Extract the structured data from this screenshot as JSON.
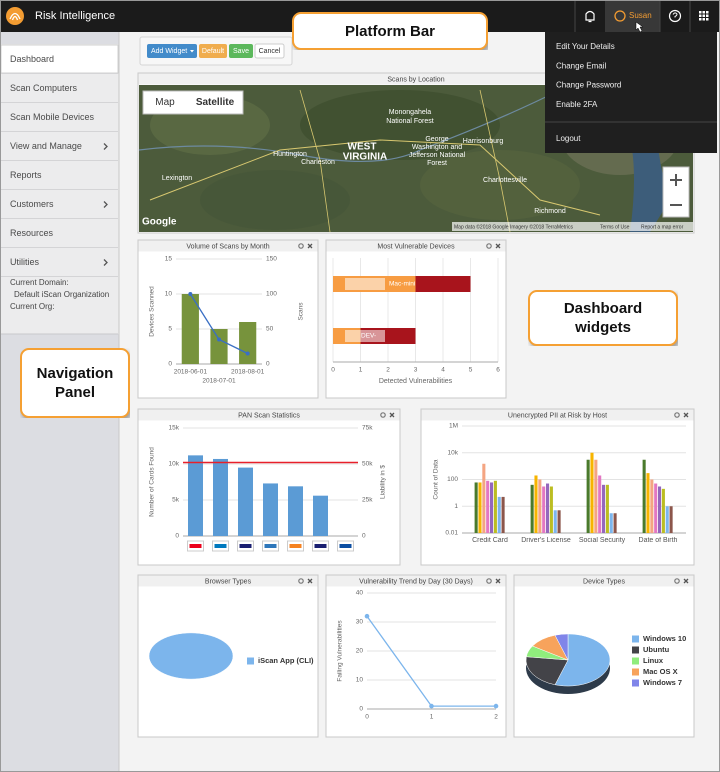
{
  "header": {
    "title": "Risk Intelligence",
    "user": "Susan"
  },
  "user_menu": {
    "items": [
      "Edit Your Details",
      "Change Email",
      "Change Password",
      "Enable 2FA"
    ],
    "logout": "Logout"
  },
  "nav": {
    "items": [
      {
        "label": "Dashboard",
        "active": true
      },
      {
        "label": "Scan Computers"
      },
      {
        "label": "Scan Mobile Devices"
      },
      {
        "label": "View and Manage",
        "has_submenu": true
      },
      {
        "label": "Reports"
      },
      {
        "label": "Customers",
        "has_submenu": true
      },
      {
        "label": "Resources"
      },
      {
        "label": "Utilities",
        "has_submenu": true
      }
    ],
    "domain_info": [
      "Current Domain:",
      "Default iScan Organization",
      "Current Org:"
    ]
  },
  "toolbar": {
    "add_widget": "Add Widget",
    "default": "Default",
    "save": "Save",
    "cancel": "Cancel"
  },
  "callouts": {
    "platform_bar": "Platform Bar",
    "dashboard_widgets": "Dashboard widgets",
    "navigation_panel": "Navigation Panel"
  },
  "widgets": [
    {
      "title": "Scans by Location",
      "map": {
        "toggle": [
          "Map",
          "Satellite"
        ],
        "labels": [
          "Huntington",
          "Charleston",
          "WEST",
          "VIRGINIA",
          "Monongahela",
          "National Forest",
          "Lexington",
          "Harrisonburg",
          "George",
          "Washington and",
          "Jefferson National",
          "Forest",
          "Charlottesville",
          "Richmond"
        ],
        "logo": "Google",
        "attribution": "Map data ©2018 Google Imagery ©2018 TerraMetrics",
        "terms": "Terms of Use",
        "report": "Report a map error"
      }
    },
    {
      "title": "Volume of Scans by Month",
      "chart": {
        "type": "bar",
        "categories": [
          "2018-06-01",
          "2018-07-01",
          "2018-08-01"
        ],
        "series": [
          {
            "type": "bar",
            "color": "#77933c",
            "values": [
              10,
              5,
              6
            ]
          },
          {
            "type": "line",
            "axis": "y2",
            "color": "#3a6fc4",
            "values": [
              100,
              35,
              15
            ]
          }
        ],
        "ylim": [
          0,
          15
        ],
        "yticks": [
          0,
          5,
          10,
          15
        ],
        "y2lim": [
          0,
          150
        ],
        "y2ticks": [
          0,
          50,
          100,
          150
        ],
        "ylabel": "Devices Scanned",
        "y2label": "Scans",
        "grid": true
      }
    },
    {
      "title": "Most Vulnerable Devices",
      "chart": {
        "type": "hbar",
        "categories": [
          "Mac-mini",
          "DEV-"
        ],
        "series": [
          {
            "color": "#f79c42",
            "values": [
              3,
              1
            ]
          },
          {
            "color": "#a8141c",
            "values": [
              2,
              2
            ]
          }
        ],
        "xlim": [
          0,
          6
        ],
        "xticks": [
          0,
          1,
          2,
          3,
          4,
          5,
          6
        ],
        "xlabel": "Detected Vulnerabilities",
        "grid": true
      }
    },
    {
      "title": "PAN Scan Statistics",
      "chart": {
        "type": "bar",
        "categories": [
          null,
          null,
          null,
          null,
          null,
          null,
          null
        ],
        "series": [
          {
            "type": "bar",
            "color": "#5b9bd5",
            "values": [
              11200,
              10700,
              9500,
              7300,
              6900,
              5600,
              0
            ]
          }
        ],
        "reference_line": {
          "value": 51000,
          "axis": "y2",
          "color": "#e8202a"
        },
        "ylim": [
          0,
          15000
        ],
        "yticks": [
          0,
          {
            "value": 5000,
            "label": "5k"
          },
          {
            "value": 10000,
            "label": "10k"
          },
          {
            "value": 15000,
            "label": "15k"
          }
        ],
        "y2lim": [
          0,
          75000
        ],
        "y2ticks": [
          0,
          {
            "value": 25000,
            "label": "25k"
          },
          {
            "value": 50000,
            "label": "50k"
          },
          {
            "value": 75000,
            "label": "75k"
          }
        ],
        "ylabel": "Number of Cards Found",
        "y2label": "Liability in $",
        "grid": true
      }
    },
    {
      "title": "Unencrypted PII at Risk by Host",
      "chart": {
        "type": "bar",
        "log_scale": true,
        "categories": [
          "Credit Card",
          "Driver's License",
          "Social Security",
          "Date of Birth"
        ],
        "series": [
          {
            "type": "bar",
            "color": "#4a7a2c",
            "values": [
              60,
              40,
              3000,
              3000
            ]
          },
          {
            "type": "bar",
            "color": "#f7b400",
            "values": [
              60,
              200,
              10000,
              300
            ]
          },
          {
            "type": "bar",
            "color": "#f4a582",
            "values": [
              1500,
              100,
              3000,
              100
            ]
          },
          {
            "type": "bar",
            "color": "#e377c2",
            "values": [
              80,
              30,
              200,
              50
            ]
          },
          {
            "type": "bar",
            "color": "#9467bd",
            "values": [
              60,
              50,
              40,
              30
            ]
          },
          {
            "type": "bar",
            "color": "#bcbd22",
            "values": [
              80,
              30,
              40,
              20
            ]
          },
          {
            "type": "bar",
            "color": "#7cb5ec",
            "values": [
              5,
              0.5,
              0.3,
              1
            ]
          },
          {
            "type": "bar",
            "color": "#8c564b",
            "values": [
              5,
              0.5,
              0.3,
              1
            ]
          }
        ],
        "ylim": [
          0.01,
          1000000
        ],
        "yticks": [
          0.01,
          1,
          100,
          {
            "value": 10000,
            "label": "10k"
          },
          {
            "value": 1000000,
            "label": "1M"
          }
        ],
        "ylabel": "Count of Data",
        "grid": true
      }
    },
    {
      "title": "Browser Types",
      "chart": {
        "type": "pie",
        "categories": [
          "iScan App (CLI)"
        ],
        "values": [
          1
        ],
        "colors": [
          "#7cb5ec"
        ]
      }
    },
    {
      "title": "Vulnerability Trend by Day (30 Days)",
      "chart": {
        "type": "line",
        "x": [
          0,
          1,
          2
        ],
        "values": [
          32,
          1,
          1
        ],
        "color": "#7cb5ec",
        "xlim": [
          0,
          2
        ],
        "xticks": [
          0,
          1,
          2
        ],
        "ylim": [
          0,
          40
        ],
        "yticks": [
          0,
          10,
          20,
          30,
          40
        ],
        "ylabel": "Failing Vulnerabilities",
        "grid": true
      }
    },
    {
      "title": "Device Types",
      "chart": {
        "type": "pie",
        "categories": [
          "Windows 10",
          "Ubuntu",
          "Linux",
          "Mac OS X",
          "Windows 7"
        ],
        "values": [
          55,
          22,
          7,
          11,
          5
        ],
        "colors": [
          "#7cb5ec",
          "#434348",
          "#90ed7d",
          "#f7a35c",
          "#8085e9"
        ]
      }
    }
  ]
}
